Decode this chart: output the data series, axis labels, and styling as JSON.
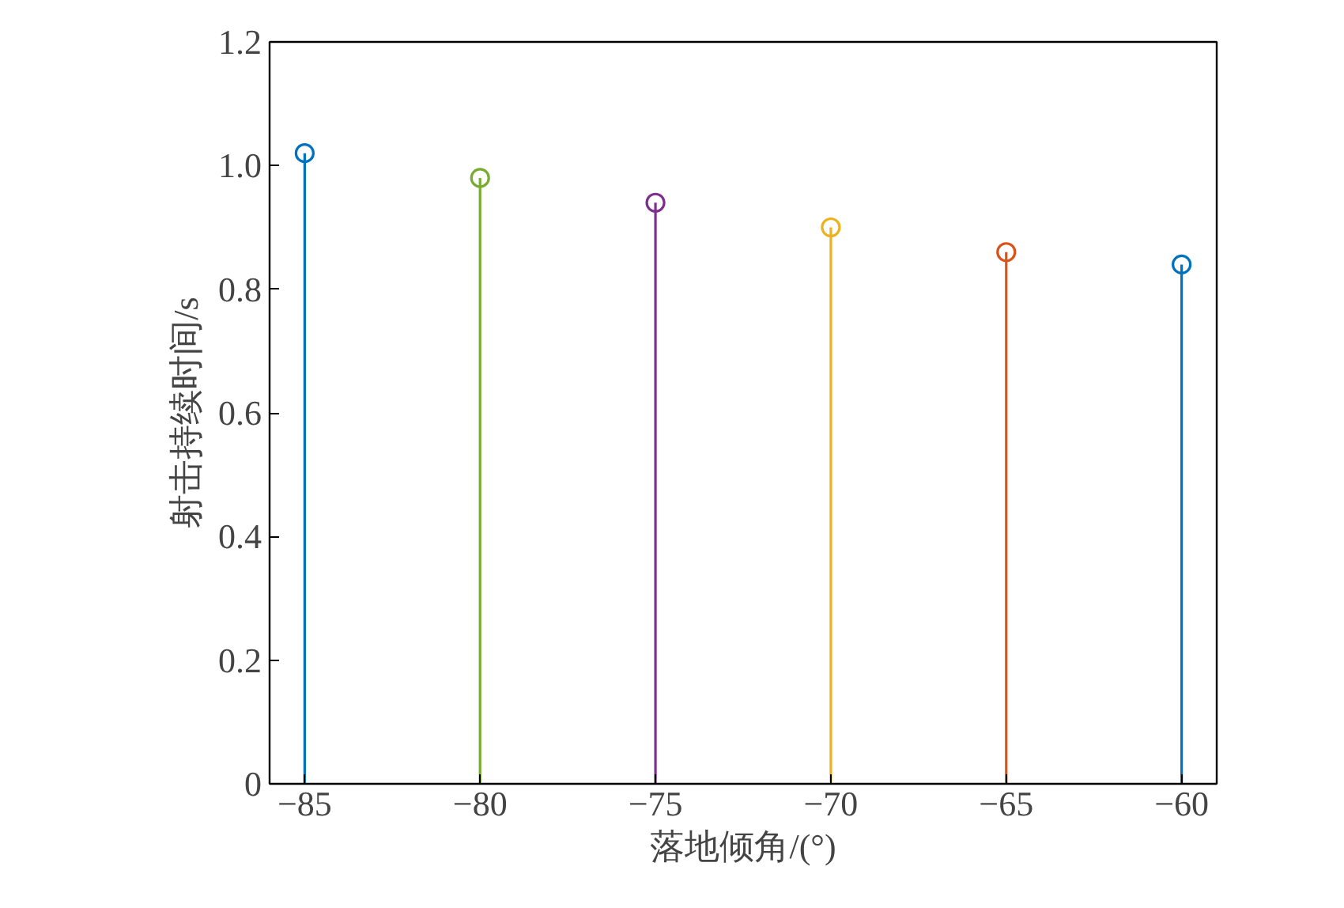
{
  "chart_data": {
    "type": "lollipop",
    "xlabel": "落地倾角/(°)",
    "ylabel": "射击持续时间/s",
    "x": [
      -85,
      -80,
      -75,
      -70,
      -65,
      -60
    ],
    "values": [
      1.02,
      0.98,
      0.94,
      0.9,
      0.86,
      0.84
    ],
    "colors": [
      "#0072bd",
      "#77ac30",
      "#7e2f8e",
      "#edb120",
      "#d95319",
      "#0072bd"
    ],
    "xlim": [
      -86,
      -59
    ],
    "xticks": [
      {
        "value": -85,
        "label": "−85"
      },
      {
        "value": -80,
        "label": "−80"
      },
      {
        "value": -75,
        "label": "−75"
      },
      {
        "value": -70,
        "label": "−70"
      },
      {
        "value": -65,
        "label": "−65"
      },
      {
        "value": -60,
        "label": "−60"
      }
    ],
    "ylim": [
      0,
      1.2
    ],
    "yticks": [
      0,
      {
        "value": 0.2,
        "label": "0.2"
      },
      {
        "value": 0.4,
        "label": "0.4"
      },
      {
        "value": 0.6,
        "label": "0.6"
      },
      {
        "value": 0.8,
        "label": "0.8"
      },
      {
        "value": 1.0,
        "label": "1.0"
      },
      {
        "value": 1.2,
        "label": "1.2"
      }
    ],
    "marker": "circle",
    "grid": false
  }
}
